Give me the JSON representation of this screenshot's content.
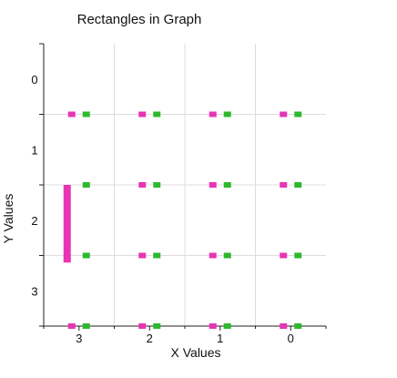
{
  "chart_data": {
    "type": "bar",
    "title": "Rectangles in Graph",
    "xlabel": "X Values",
    "ylabel": "Y Values",
    "x_categories": [
      "3",
      "2",
      "1",
      "0"
    ],
    "y_categories": [
      "0",
      "1",
      "2",
      "3"
    ],
    "xlim": [
      -0.5,
      3.5
    ],
    "ylim": [
      -0.5,
      3.5
    ],
    "y_inverted": true,
    "grid": true,
    "colors": {
      "magenta": "#e834b4",
      "green": "#2eb82e"
    },
    "markers": [
      {
        "x": "3",
        "y_boundary": 0.5,
        "color": "magenta"
      },
      {
        "x": "3",
        "y_boundary": 0.5,
        "color": "green"
      },
      {
        "x": "2",
        "y_boundary": 0.5,
        "color": "magenta"
      },
      {
        "x": "2",
        "y_boundary": 0.5,
        "color": "green"
      },
      {
        "x": "1",
        "y_boundary": 0.5,
        "color": "magenta"
      },
      {
        "x": "1",
        "y_boundary": 0.5,
        "color": "green"
      },
      {
        "x": "0",
        "y_boundary": 0.5,
        "color": "magenta"
      },
      {
        "x": "0",
        "y_boundary": 0.5,
        "color": "green"
      },
      {
        "x": "3",
        "y_boundary": 1.5,
        "color": "green"
      },
      {
        "x": "2",
        "y_boundary": 1.5,
        "color": "magenta"
      },
      {
        "x": "2",
        "y_boundary": 1.5,
        "color": "green"
      },
      {
        "x": "1",
        "y_boundary": 1.5,
        "color": "magenta"
      },
      {
        "x": "1",
        "y_boundary": 1.5,
        "color": "green"
      },
      {
        "x": "0",
        "y_boundary": 1.5,
        "color": "magenta"
      },
      {
        "x": "0",
        "y_boundary": 1.5,
        "color": "green"
      },
      {
        "x": "3",
        "y_boundary": 2.5,
        "color": "green"
      },
      {
        "x": "2",
        "y_boundary": 2.5,
        "color": "magenta"
      },
      {
        "x": "2",
        "y_boundary": 2.5,
        "color": "green"
      },
      {
        "x": "1",
        "y_boundary": 2.5,
        "color": "magenta"
      },
      {
        "x": "1",
        "y_boundary": 2.5,
        "color": "green"
      },
      {
        "x": "0",
        "y_boundary": 2.5,
        "color": "magenta"
      },
      {
        "x": "0",
        "y_boundary": 2.5,
        "color": "green"
      },
      {
        "x": "3",
        "y_boundary": 3.5,
        "color": "magenta"
      },
      {
        "x": "3",
        "y_boundary": 3.5,
        "color": "green"
      },
      {
        "x": "2",
        "y_boundary": 3.5,
        "color": "magenta"
      },
      {
        "x": "2",
        "y_boundary": 3.5,
        "color": "green"
      },
      {
        "x": "1",
        "y_boundary": 3.5,
        "color": "magenta"
      },
      {
        "x": "1",
        "y_boundary": 3.5,
        "color": "green"
      },
      {
        "x": "0",
        "y_boundary": 3.5,
        "color": "magenta"
      },
      {
        "x": "0",
        "y_boundary": 3.5,
        "color": "green"
      }
    ],
    "bars": [
      {
        "x": "3",
        "y_from": 1.5,
        "y_to": 2.6,
        "color": "magenta"
      }
    ]
  }
}
